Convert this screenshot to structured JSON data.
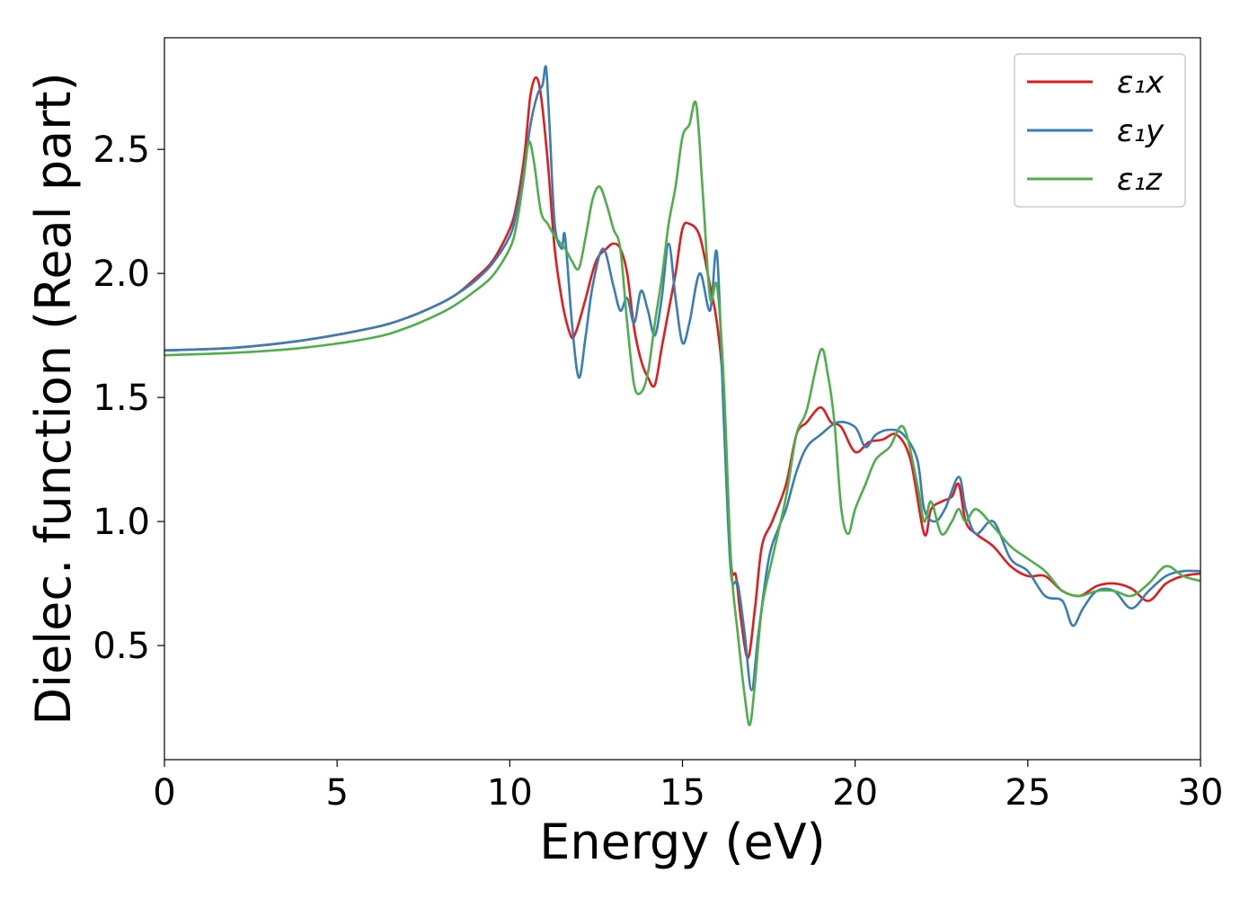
{
  "chart_data": {
    "type": "line",
    "title": "",
    "xlabel": "Energy (eV)",
    "ylabel": "Dielec. function (Real part)",
    "xlim": [
      0,
      30
    ],
    "ylim": [
      0.04,
      2.95
    ],
    "xticks": [
      0,
      5,
      10,
      15,
      20,
      25,
      30
    ],
    "yticks": [
      0.5,
      1.0,
      1.5,
      2.0,
      2.5
    ],
    "xtick_labels": [
      "0",
      "5",
      "10",
      "15",
      "20",
      "25",
      "30"
    ],
    "ytick_labels": [
      "0.5",
      "1.0",
      "1.5",
      "2.0",
      "2.5"
    ],
    "grid": false,
    "legend_position": "top-right",
    "series": [
      {
        "name": "ε₁x",
        "color": "#e41a1c",
        "x": [
          0,
          2,
          4,
          6,
          7,
          8,
          8.5,
          9,
          9.5,
          10,
          10.2,
          10.4,
          10.5,
          10.6,
          10.75,
          10.9,
          11.1,
          11.3,
          11.5,
          11.65,
          11.8,
          11.9,
          12.0,
          12.2,
          12.5,
          12.8,
          13.0,
          13.2,
          13.4,
          13.6,
          13.8,
          14.0,
          14.2,
          14.4,
          14.6,
          14.8,
          15.0,
          15.2,
          15.5,
          15.8,
          16.0,
          16.2,
          16.4,
          16.55,
          16.7,
          16.9,
          17.1,
          17.3,
          17.6,
          18.0,
          18.3,
          18.6,
          19.0,
          19.3,
          19.6,
          20.0,
          20.4,
          20.8,
          21.2,
          21.6,
          22.0,
          22.2,
          22.5,
          22.8,
          23.0,
          23.2,
          23.5,
          24.0,
          24.5,
          25.0,
          25.5,
          26.0,
          26.5,
          27.0,
          27.5,
          28.0,
          28.5,
          29.0,
          29.5,
          30.0
        ],
        "values": [
          1.69,
          1.7,
          1.73,
          1.78,
          1.82,
          1.88,
          1.92,
          1.98,
          2.05,
          2.18,
          2.28,
          2.45,
          2.58,
          2.72,
          2.79,
          2.72,
          2.45,
          2.1,
          1.9,
          1.8,
          1.74,
          1.76,
          1.8,
          1.9,
          2.05,
          2.1,
          2.12,
          2.1,
          2.0,
          1.78,
          1.65,
          1.58,
          1.55,
          1.7,
          1.85,
          2.0,
          2.18,
          2.2,
          2.15,
          1.95,
          1.8,
          1.5,
          0.85,
          0.78,
          0.6,
          0.45,
          0.65,
          0.9,
          1.0,
          1.15,
          1.35,
          1.4,
          1.46,
          1.4,
          1.38,
          1.28,
          1.32,
          1.33,
          1.35,
          1.25,
          0.95,
          1.05,
          1.08,
          1.1,
          1.15,
          1.0,
          0.95,
          0.9,
          0.82,
          0.78,
          0.78,
          0.72,
          0.7,
          0.74,
          0.75,
          0.73,
          0.68,
          0.75,
          0.78,
          0.79
        ]
      },
      {
        "name": "ε₁y",
        "color": "#377eb8",
        "x": [
          0,
          2,
          4,
          6,
          7,
          8,
          8.5,
          9,
          9.5,
          10,
          10.2,
          10.4,
          10.6,
          10.8,
          10.95,
          11.05,
          11.15,
          11.3,
          11.5,
          11.6,
          11.8,
          12.0,
          12.2,
          12.4,
          12.7,
          13.0,
          13.2,
          13.4,
          13.6,
          13.8,
          14.0,
          14.2,
          14.4,
          14.6,
          14.8,
          15.0,
          15.2,
          15.5,
          15.8,
          16.0,
          16.2,
          16.4,
          16.6,
          16.8,
          17.0,
          17.2,
          17.5,
          17.8,
          18.0,
          18.3,
          18.6,
          19.0,
          19.5,
          20.0,
          20.3,
          20.6,
          21.0,
          21.4,
          21.8,
          22.0,
          22.3,
          22.6,
          23.0,
          23.2,
          23.5,
          24.0,
          24.5,
          25.0,
          25.5,
          26.0,
          26.3,
          26.6,
          27.0,
          27.5,
          28.0,
          28.5,
          29.0,
          29.5,
          30.0
        ],
        "values": [
          1.69,
          1.7,
          1.73,
          1.78,
          1.82,
          1.88,
          1.92,
          1.97,
          2.04,
          2.15,
          2.25,
          2.4,
          2.6,
          2.72,
          2.76,
          2.83,
          2.6,
          2.2,
          2.1,
          2.15,
          1.8,
          1.58,
          1.75,
          1.95,
          2.1,
          1.95,
          1.85,
          1.9,
          1.8,
          1.93,
          1.85,
          1.75,
          1.9,
          2.12,
          1.9,
          1.72,
          1.8,
          2.0,
          1.85,
          2.08,
          1.4,
          0.8,
          0.75,
          0.55,
          0.32,
          0.55,
          0.85,
          0.98,
          1.05,
          1.2,
          1.3,
          1.35,
          1.4,
          1.38,
          1.3,
          1.35,
          1.37,
          1.35,
          1.25,
          1.05,
          1.0,
          1.05,
          1.18,
          1.05,
          0.95,
          1.0,
          0.85,
          0.8,
          0.7,
          0.68,
          0.58,
          0.65,
          0.72,
          0.72,
          0.65,
          0.72,
          0.78,
          0.8,
          0.8
        ]
      },
      {
        "name": "ε₁z",
        "color": "#4daf4a",
        "x": [
          0,
          2,
          4,
          6,
          7,
          8,
          8.5,
          9,
          9.5,
          10,
          10.2,
          10.4,
          10.55,
          10.7,
          10.9,
          11.1,
          11.3,
          11.6,
          11.8,
          12.0,
          12.2,
          12.4,
          12.6,
          12.8,
          13.0,
          13.2,
          13.4,
          13.6,
          13.8,
          14.0,
          14.2,
          14.4,
          14.6,
          14.8,
          15.0,
          15.2,
          15.4,
          15.6,
          15.8,
          16.0,
          16.2,
          16.4,
          16.6,
          16.8,
          16.95,
          17.1,
          17.3,
          17.6,
          18.0,
          18.3,
          18.6,
          19.0,
          19.2,
          19.4,
          19.6,
          19.8,
          20.0,
          20.3,
          20.6,
          21.0,
          21.4,
          21.8,
          22.0,
          22.2,
          22.5,
          22.8,
          23.0,
          23.2,
          23.5,
          24.0,
          24.5,
          25.0,
          25.5,
          26.0,
          26.5,
          27.0,
          27.5,
          28.0,
          28.5,
          29.0,
          29.5,
          30.0
        ],
        "values": [
          1.67,
          1.68,
          1.7,
          1.74,
          1.78,
          1.84,
          1.88,
          1.93,
          1.99,
          2.1,
          2.2,
          2.38,
          2.53,
          2.45,
          2.25,
          2.2,
          2.15,
          2.1,
          2.05,
          2.02,
          2.15,
          2.3,
          2.35,
          2.28,
          2.18,
          2.1,
          1.8,
          1.55,
          1.52,
          1.6,
          1.8,
          1.98,
          2.2,
          2.35,
          2.55,
          2.6,
          2.68,
          2.3,
          1.9,
          1.95,
          1.55,
          0.85,
          0.55,
          0.3,
          0.18,
          0.35,
          0.65,
          0.85,
          1.1,
          1.35,
          1.45,
          1.69,
          1.6,
          1.4,
          1.05,
          0.95,
          1.05,
          1.15,
          1.25,
          1.3,
          1.38,
          1.15,
          1.0,
          1.08,
          0.95,
          1.0,
          1.05,
          1.0,
          1.05,
          0.98,
          0.9,
          0.85,
          0.8,
          0.72,
          0.7,
          0.72,
          0.72,
          0.7,
          0.75,
          0.82,
          0.78,
          0.76
        ]
      }
    ]
  }
}
